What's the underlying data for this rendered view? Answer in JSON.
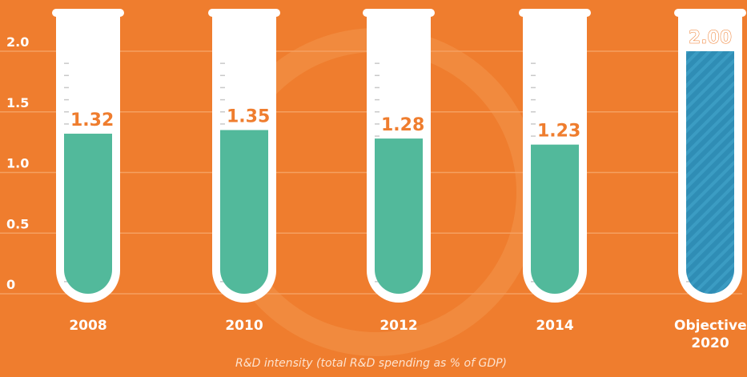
{
  "chart_data": {
    "type": "test-tube-bar",
    "x_label": "R&D intensity (total R&D spending as % of GDP)",
    "categories": [
      "2008",
      "2010",
      "2012",
      "2014",
      "Objective 2020"
    ],
    "values": [
      1.32,
      1.35,
      1.28,
      1.23,
      2.0
    ],
    "value_labels": [
      "1.32",
      "1.35",
      "1.28",
      "1.23",
      "2.00"
    ],
    "colors": [
      "#52b99b",
      "#52b99b",
      "#52b99b",
      "#52b99b",
      "#2f8db5"
    ],
    "ylim": [
      0,
      2
    ],
    "yticks": [
      0,
      0.5,
      {
        "value": 1,
        "label": "1.0"
      },
      1.5,
      {
        "value": 2,
        "label": "2.0"
      }
    ],
    "grid": true
  }
}
